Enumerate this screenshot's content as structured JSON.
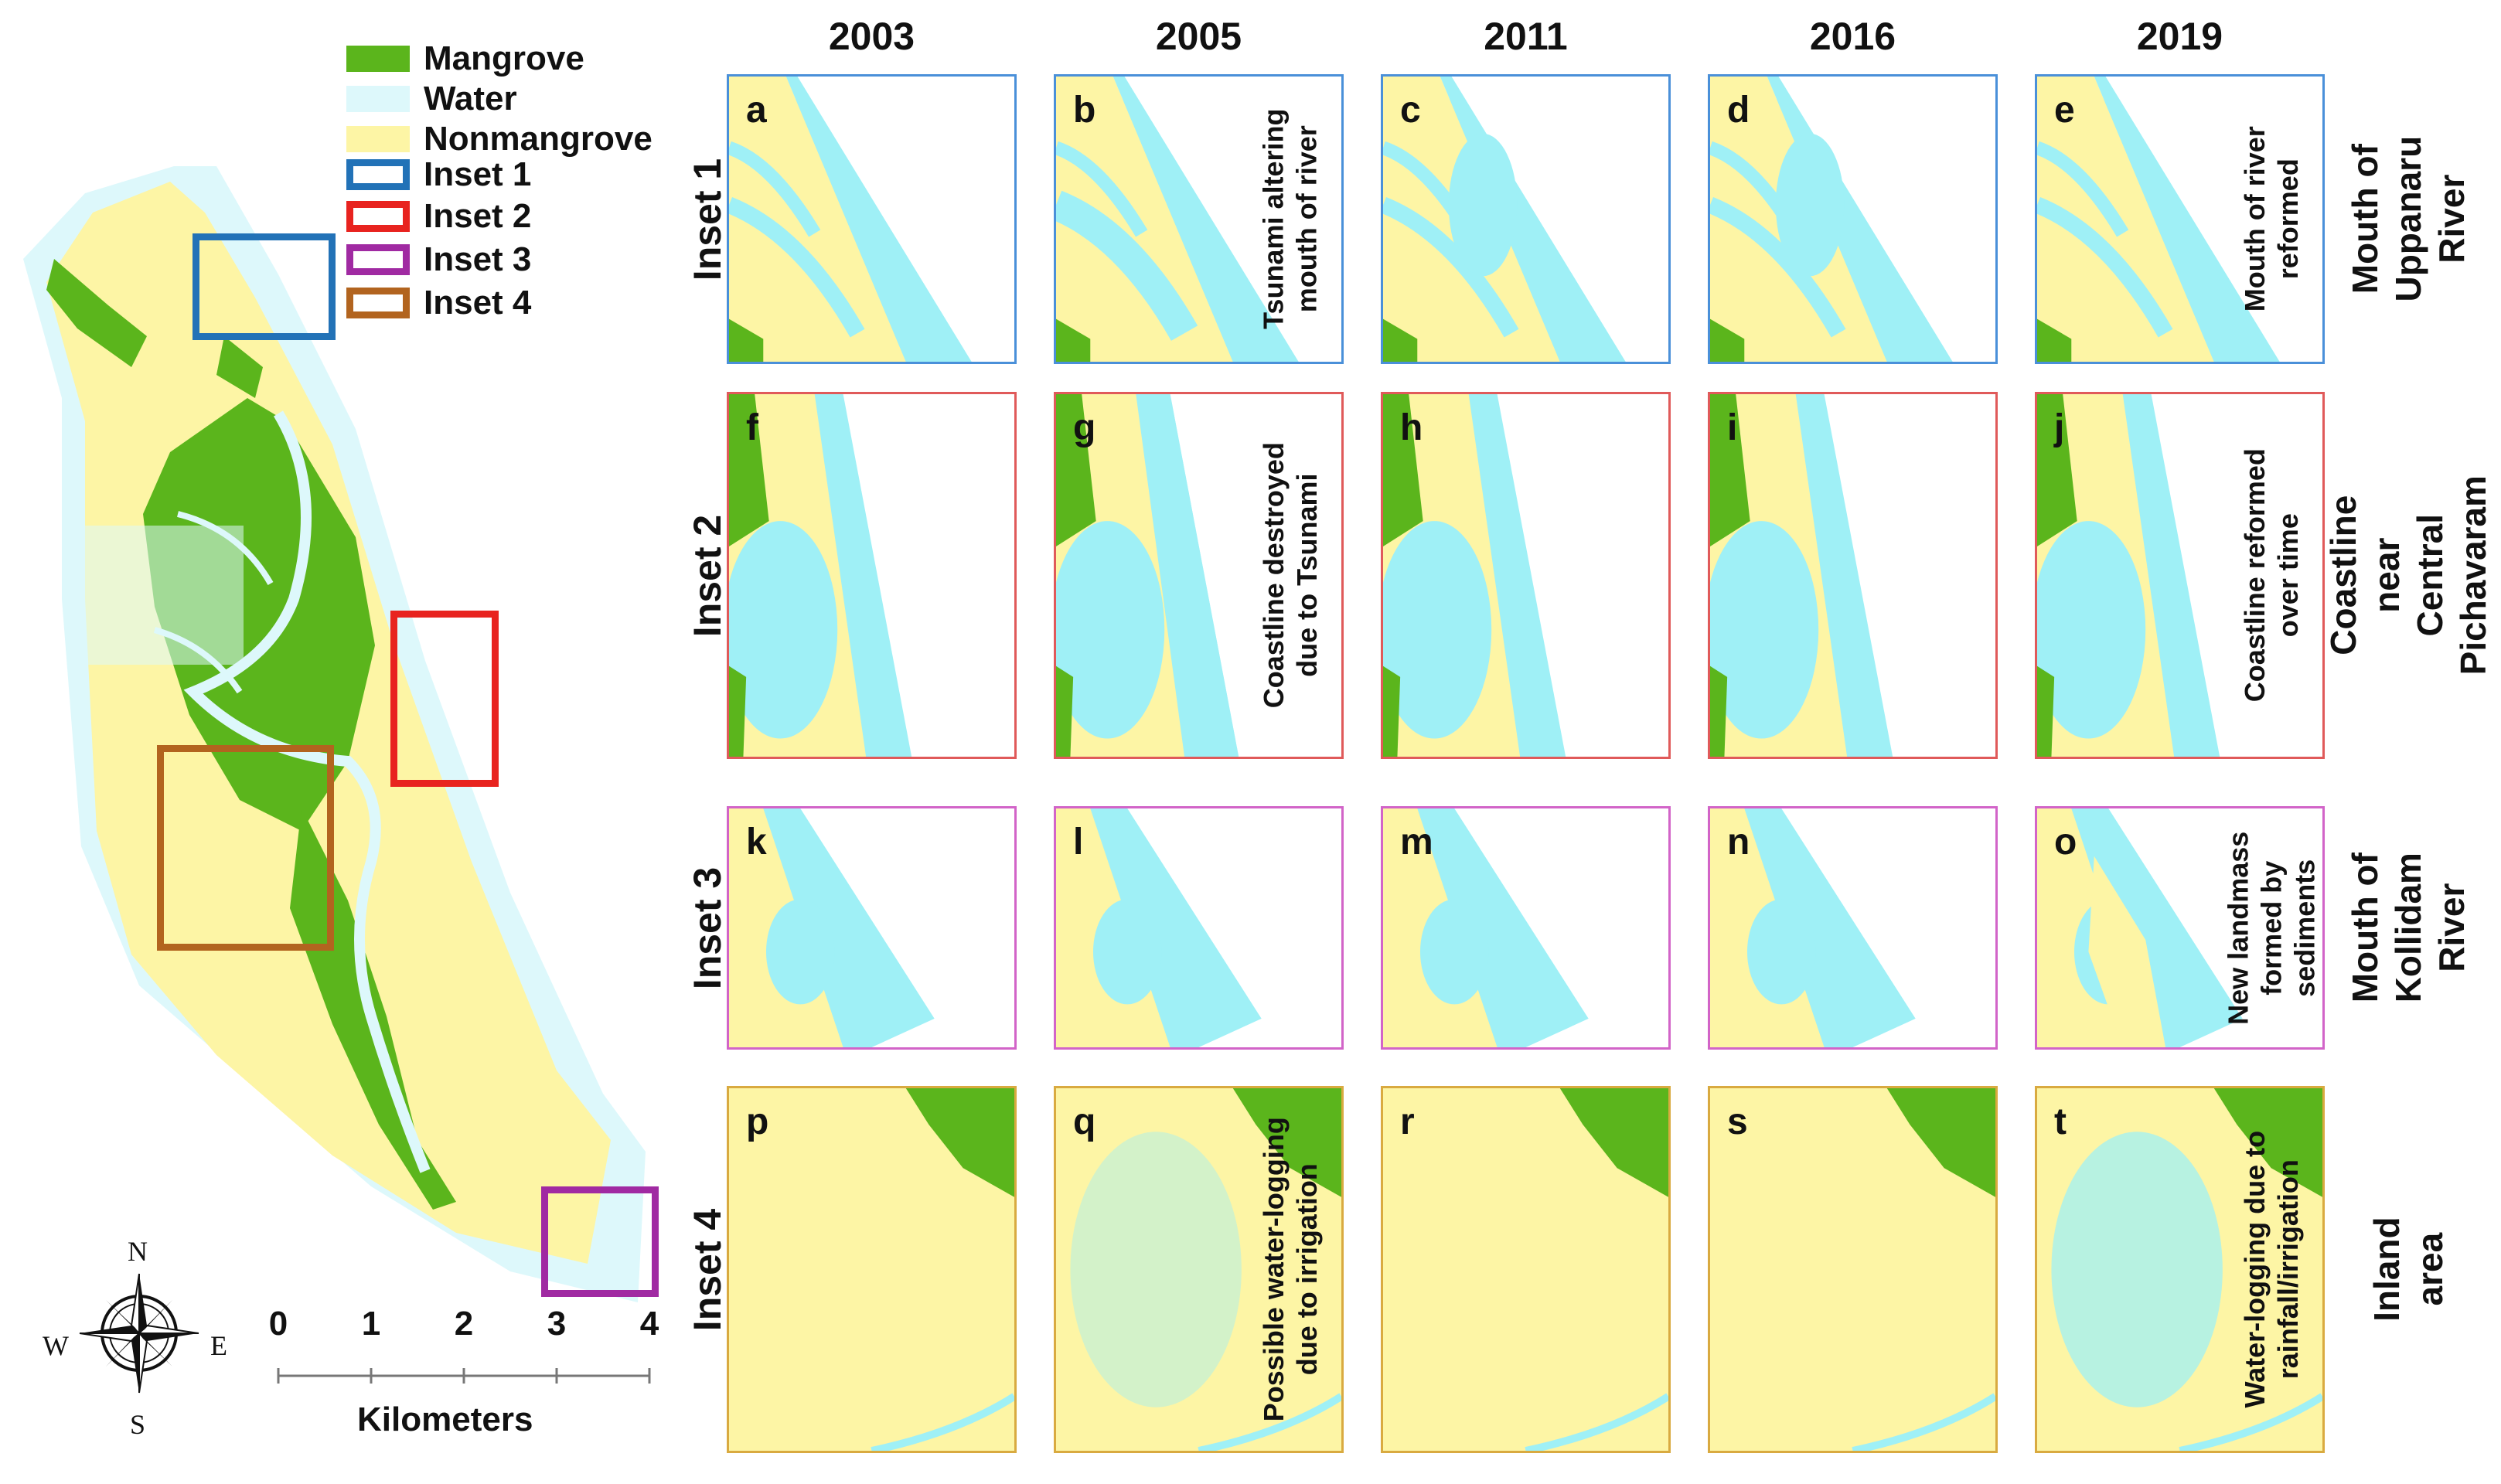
{
  "legend": [
    {
      "label": "Mangrove",
      "kind": "fill",
      "color": "#5bb51c"
    },
    {
      "label": "Water",
      "kind": "fill",
      "color": "#ddf8fb"
    },
    {
      "label": "Nonmangrove",
      "kind": "fill",
      "color": "#fdf5a5"
    },
    {
      "label": "Inset 1",
      "kind": "outline",
      "color": "#2272b7"
    },
    {
      "label": "Inset 2",
      "kind": "outline",
      "color": "#e8231f"
    },
    {
      "label": "Inset 3",
      "kind": "outline",
      "color": "#a02aa2"
    },
    {
      "label": "Inset 4",
      "kind": "outline",
      "color": "#b2641f"
    }
  ],
  "years": [
    "2003",
    "2005",
    "2011",
    "2016",
    "2019"
  ],
  "rows": [
    {
      "inset": "Inset 1",
      "place": [
        "Mouth of",
        "Uppanaru",
        "River"
      ],
      "border": "#4a90d9"
    },
    {
      "inset": "Inset 2",
      "place": [
        "Coastline near",
        "Central",
        "Pichavaram"
      ],
      "border": "#e05a5a"
    },
    {
      "inset": "Inset 3",
      "place": [
        "Mouth of",
        "Kollidam",
        "River"
      ],
      "border": "#d264c8"
    },
    {
      "inset": "Inset 4",
      "place": [
        "Inland area"
      ],
      "border": "#d9aa40"
    }
  ],
  "panel_letters": [
    "a",
    "b",
    "c",
    "d",
    "e",
    "f",
    "g",
    "h",
    "i",
    "j",
    "k",
    "l",
    "m",
    "n",
    "o",
    "p",
    "q",
    "r",
    "s",
    "t"
  ],
  "annotations": {
    "b": [
      "Tsunami altering",
      "mouth of river"
    ],
    "e": [
      "Mouth of river",
      "reformed"
    ],
    "g": [
      "Coastline destroyed",
      "due to Tsunami"
    ],
    "j": [
      "Coastline reformed",
      "over time"
    ],
    "o": [
      "New landmass",
      "formed by",
      "sediments"
    ],
    "q": [
      "Possible water-logging",
      "due to irrigation"
    ],
    "t": [
      "Water-logging due to",
      "rainfall/irrigation"
    ]
  },
  "scale": {
    "ticks": [
      "0",
      "1",
      "2",
      "3",
      "4"
    ],
    "unit": "Kilometers"
  },
  "compass": {
    "n": "N",
    "s": "S",
    "e": "E",
    "w": "W"
  },
  "colors": {
    "mangrove": "#5bb51c",
    "water": "#9ff0f6",
    "water_light": "#ddf8fb",
    "nonmangrove": "#fdf5a5"
  }
}
